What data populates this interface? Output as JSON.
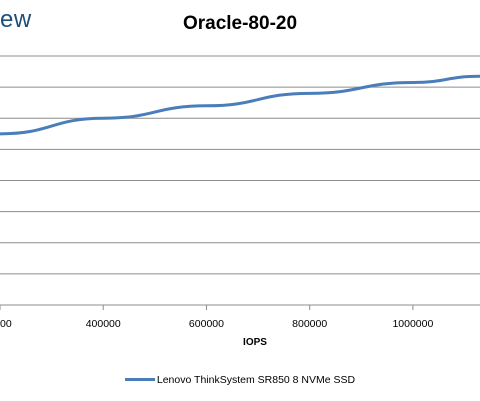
{
  "watermark": "ew",
  "chart_data": {
    "type": "line",
    "title": "Oracle-80-20",
    "xlabel": "IOPS",
    "ylabel": "",
    "x_ticks": [
      "00",
      "400000",
      "600000",
      "800000",
      "1000000"
    ],
    "xlim": [
      200000,
      1130000
    ],
    "ylim": [
      0,
      8
    ],
    "y_gridlines": 8,
    "legend_position": "bottom",
    "series": [
      {
        "name": "Lenovo ThinkSystem SR850 8 NVMe SSD",
        "color": "#4a7ebb",
        "x": [
          200000,
          400000,
          600000,
          800000,
          1000000,
          1130000
        ],
        "y": [
          5.5,
          6.0,
          6.4,
          6.8,
          7.15,
          7.35
        ]
      }
    ]
  }
}
